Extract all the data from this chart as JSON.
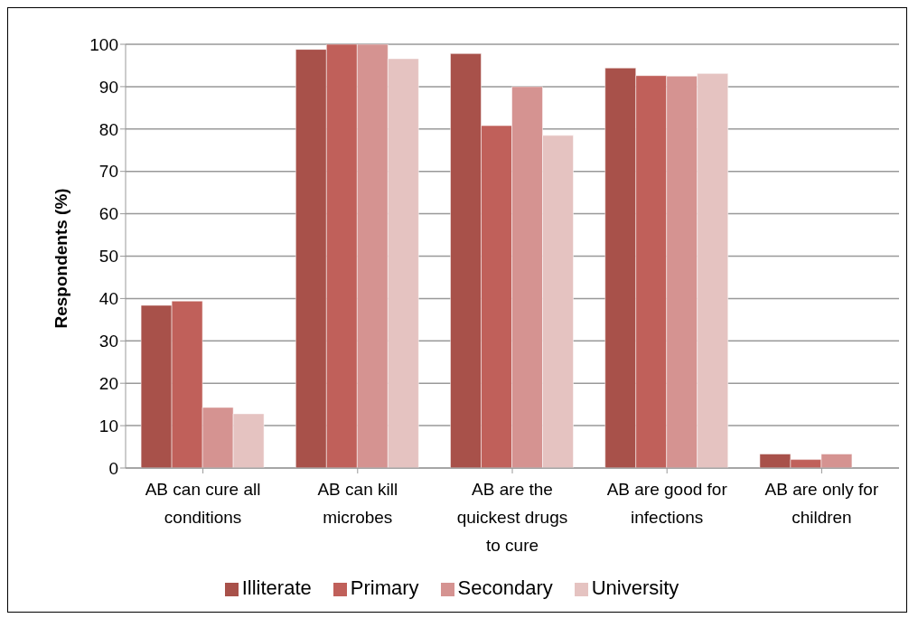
{
  "chart_data": {
    "type": "bar",
    "ylabel": "Respondents (%)",
    "categories": [
      "AB can cure all conditions",
      "AB can kill microbes",
      "AB are the quickest drugs to cure",
      "AB are good for infections",
      "AB are only for children"
    ],
    "series": [
      {
        "name": "Illiterate",
        "color": "#a8514a",
        "values": [
          38.4,
          98.8,
          97.8,
          94.4,
          3.3
        ]
      },
      {
        "name": "Primary",
        "color": "#c0605a",
        "values": [
          39.4,
          100,
          80.8,
          92.6,
          2.0
        ]
      },
      {
        "name": "Secondary",
        "color": "#d59391",
        "values": [
          14.3,
          100,
          90,
          92.5,
          3.3
        ]
      },
      {
        "name": "University",
        "color": "#e5c3c1",
        "values": [
          12.8,
          96.6,
          78.5,
          93.1,
          null
        ]
      }
    ],
    "ylim": [
      0,
      100
    ],
    "yticks": [
      0,
      10,
      20,
      30,
      40,
      50,
      60,
      70,
      80,
      90,
      100
    ],
    "grid": "y",
    "legend": "bottom"
  }
}
